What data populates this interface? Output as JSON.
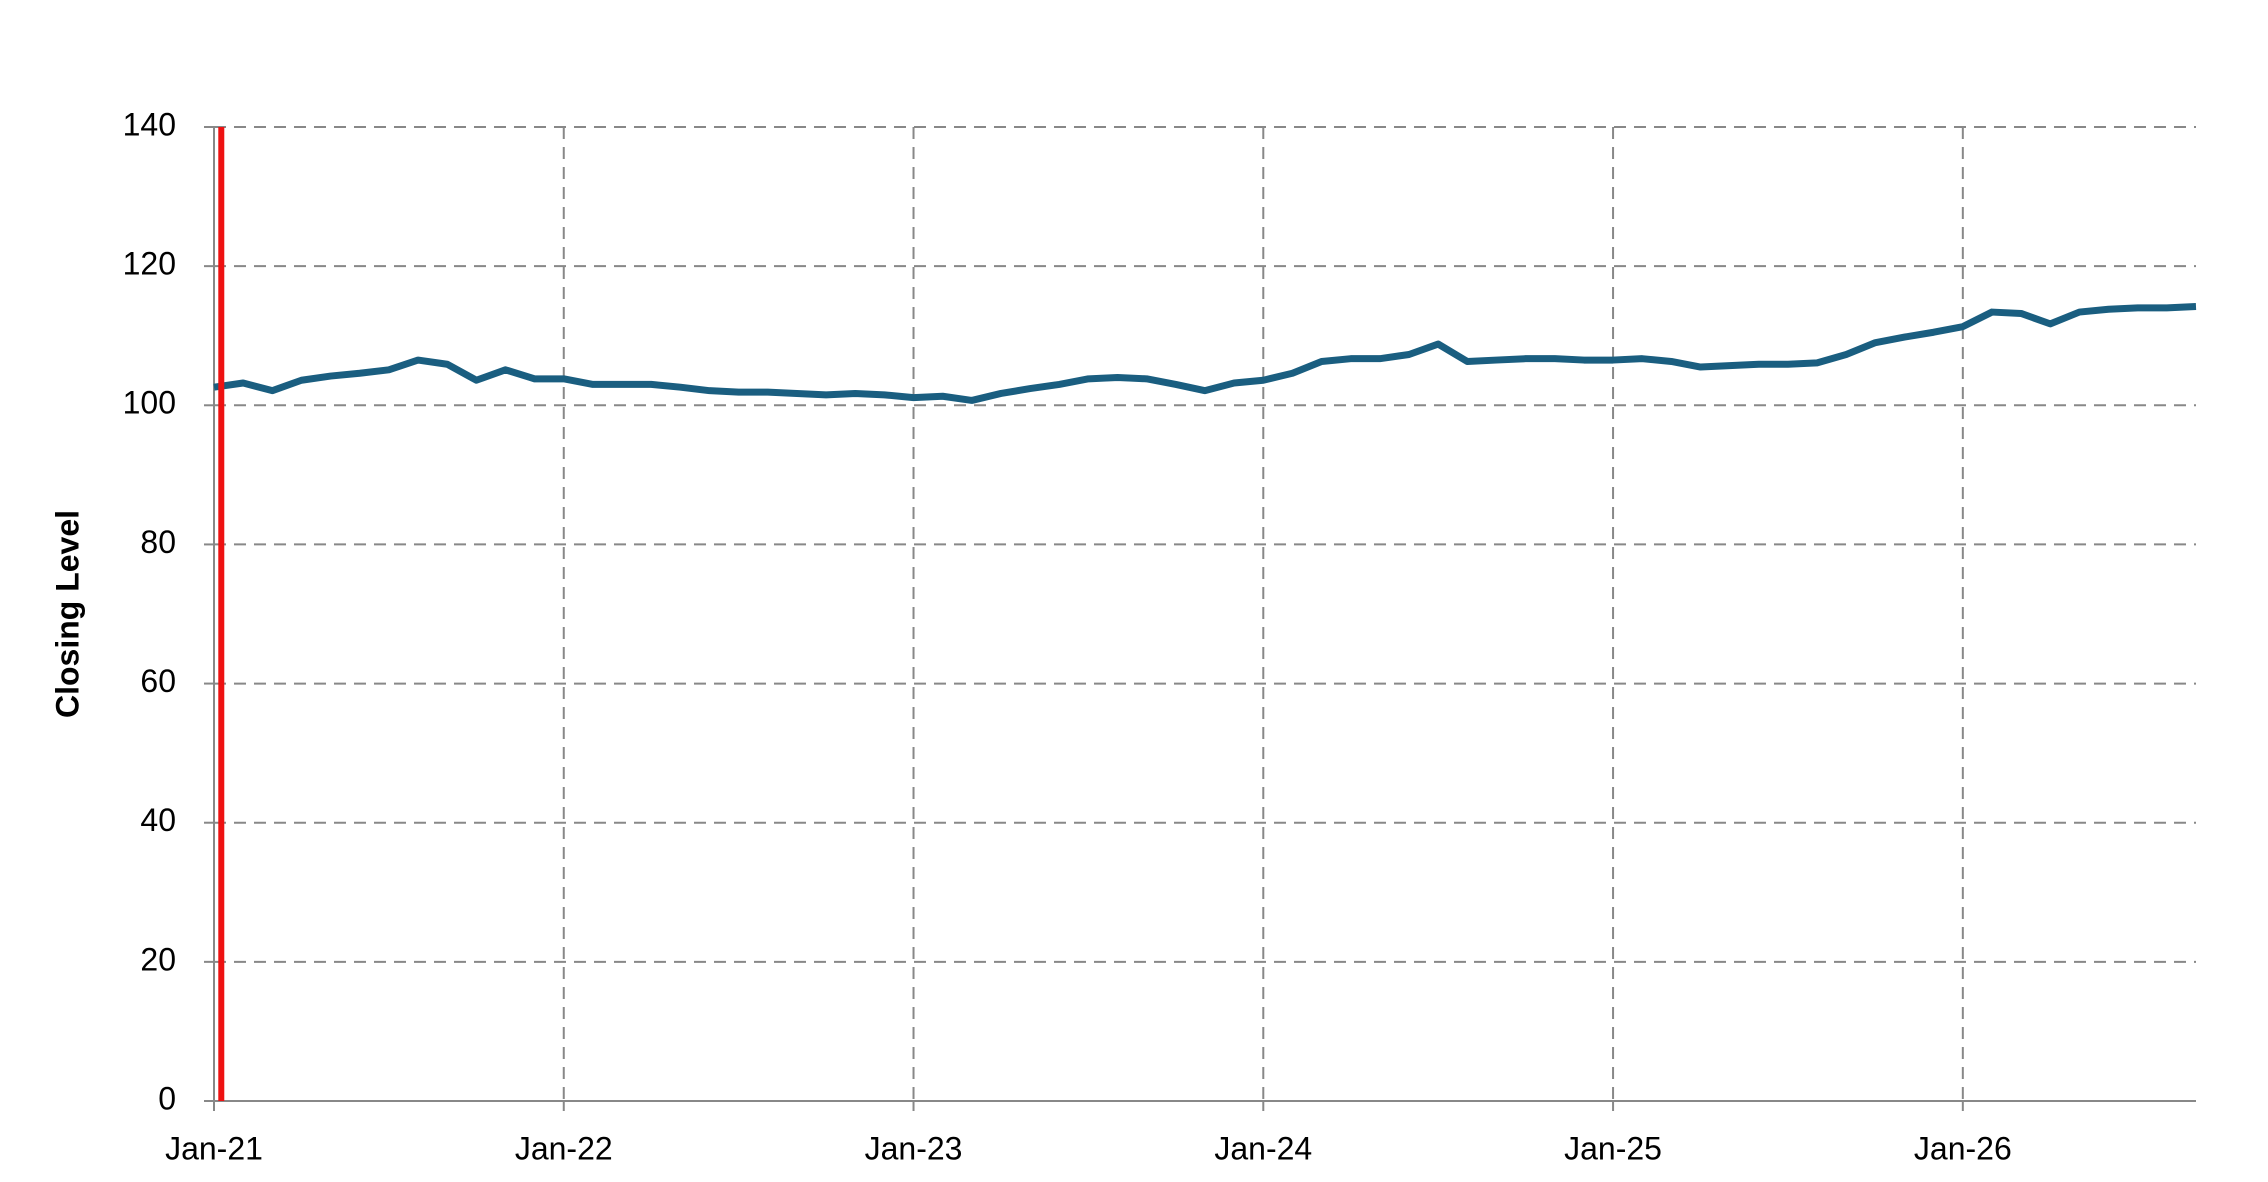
{
  "chart_data": {
    "type": "line",
    "y_label": "Closing Level",
    "x": [
      0,
      1,
      2,
      3,
      4,
      5,
      6,
      7,
      8,
      9,
      10,
      11,
      12,
      13,
      14,
      15,
      16,
      17,
      18,
      19,
      20,
      21,
      22,
      23,
      24,
      25,
      26,
      27,
      28,
      29,
      30,
      31,
      32,
      33,
      34,
      35,
      36,
      37,
      38,
      39,
      40,
      41,
      42,
      43,
      44,
      45,
      46,
      47,
      48,
      49,
      50,
      51,
      52,
      53,
      54,
      55,
      56,
      57,
      58,
      59,
      60,
      61,
      62,
      63,
      64,
      65,
      66,
      67,
      68
    ],
    "series": [
      {
        "color": "#1a5e80",
        "values": [
          102.6,
          103.2,
          102.1,
          103.6,
          104.2,
          104.6,
          105.1,
          106.5,
          105.9,
          103.6,
          105.1,
          103.8,
          103.8,
          103.0,
          103.0,
          103.0,
          102.6,
          102.1,
          101.9,
          101.9,
          101.7,
          101.5,
          101.7,
          101.5,
          101.1,
          101.3,
          100.7,
          101.7,
          102.4,
          103.0,
          103.8,
          104.0,
          103.8,
          103.0,
          102.1,
          103.2,
          103.6,
          104.6,
          106.3,
          106.7,
          106.7,
          107.3,
          108.8,
          106.3,
          106.5,
          106.7,
          106.7,
          106.5,
          106.5,
          106.7,
          106.3,
          105.5,
          105.7,
          105.9,
          105.9,
          106.1,
          107.3,
          109.0,
          109.8,
          110.5,
          111.3,
          113.4,
          113.2,
          111.7,
          113.4,
          113.8,
          114.0,
          114.0,
          114.2
        ]
      }
    ],
    "xlim": [
      0,
      68
    ],
    "xticks": [
      {
        "value": 0,
        "label": "Jan-21"
      },
      {
        "value": 12,
        "label": "Jan-22"
      },
      {
        "value": 24,
        "label": "Jan-23"
      },
      {
        "value": 36,
        "label": "Jan-24"
      },
      {
        "value": 48,
        "label": "Jan-25"
      },
      {
        "value": 60,
        "label": "Jan-26"
      }
    ],
    "ylim": [
      0,
      140
    ],
    "yticks": [
      0,
      20,
      40,
      60,
      80,
      100,
      120,
      140
    ],
    "grid": true,
    "vlines": [
      {
        "x": 0.25,
        "color": "#ee1111"
      }
    ]
  }
}
